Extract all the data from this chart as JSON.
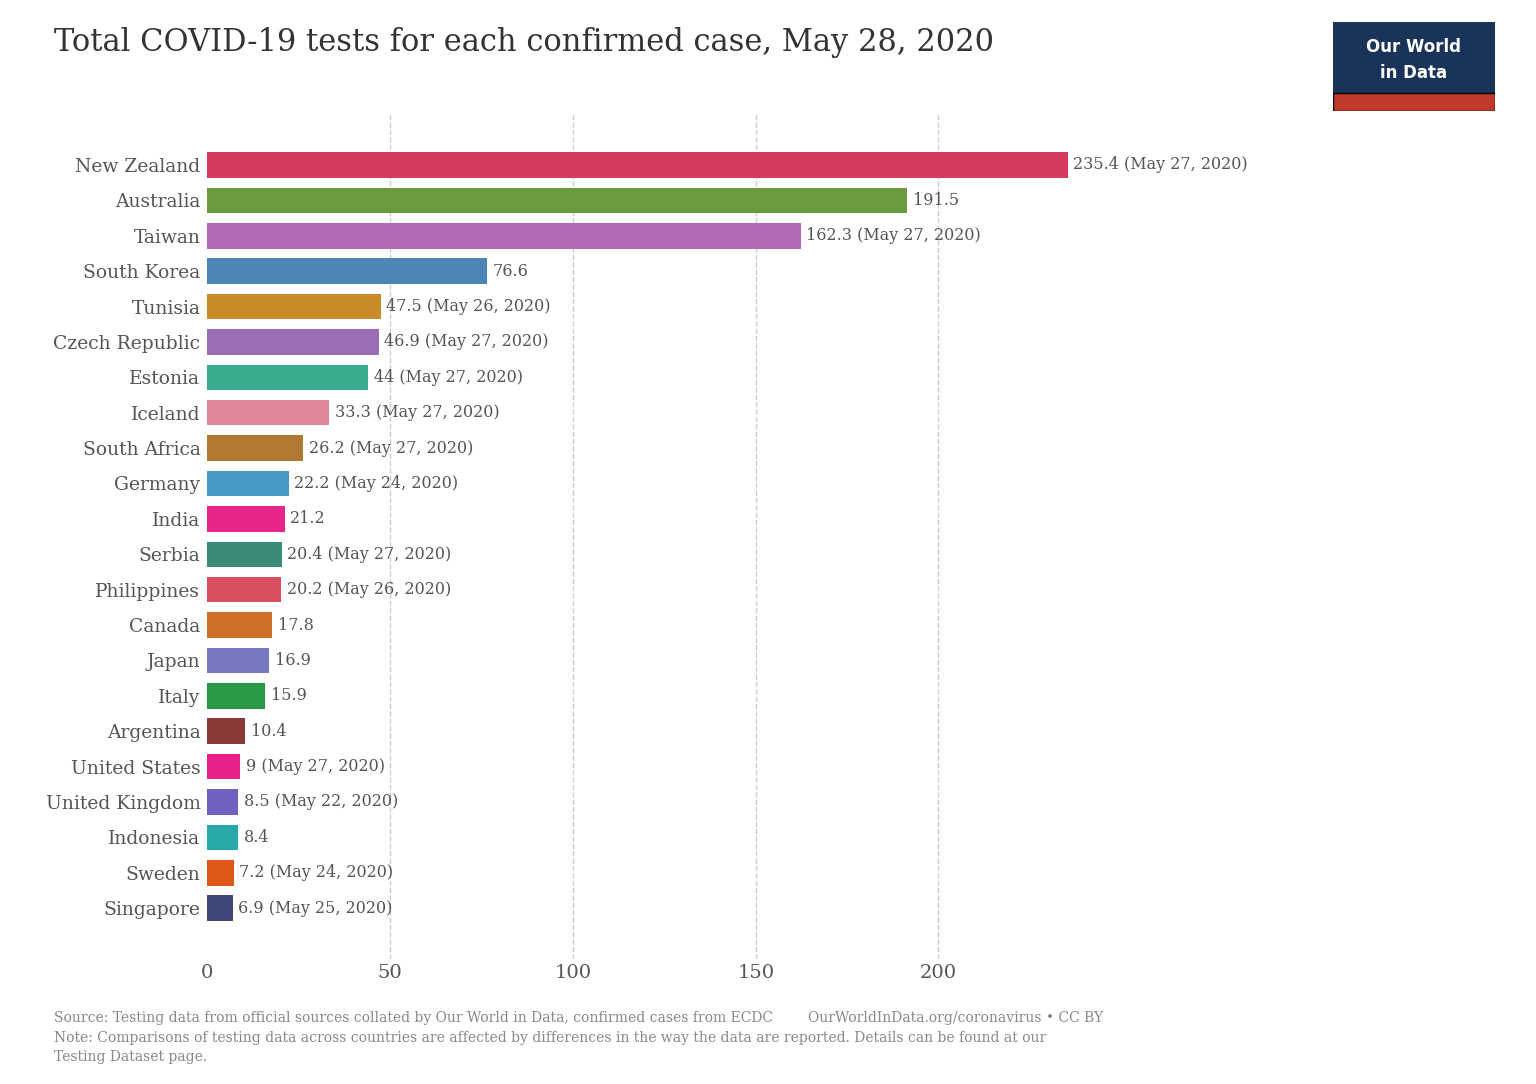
{
  "title": "Total COVID-19 tests for each confirmed case, May 28, 2020",
  "countries": [
    "New Zealand",
    "Australia",
    "Taiwan",
    "South Korea",
    "Tunisia",
    "Czech Republic",
    "Estonia",
    "Iceland",
    "South Africa",
    "Germany",
    "India",
    "Serbia",
    "Philippines",
    "Canada",
    "Japan",
    "Italy",
    "Argentina",
    "United States",
    "United Kingdom",
    "Indonesia",
    "Sweden",
    "Singapore"
  ],
  "values": [
    235.4,
    191.5,
    162.3,
    76.6,
    47.5,
    46.9,
    44.0,
    33.3,
    26.2,
    22.2,
    21.2,
    20.4,
    20.2,
    17.8,
    16.9,
    15.9,
    10.4,
    9.0,
    8.5,
    8.4,
    7.2,
    6.9
  ],
  "labels": [
    "235.4 (May 27, 2020)",
    "191.5",
    "162.3 (May 27, 2020)",
    "76.6",
    "47.5 (May 26, 2020)",
    "46.9 (May 27, 2020)",
    "44 (May 27, 2020)",
    "33.3 (May 27, 2020)",
    "26.2 (May 27, 2020)",
    "22.2 (May 24, 2020)",
    "21.2",
    "20.4 (May 27, 2020)",
    "20.2 (May 26, 2020)",
    "17.8",
    "16.9",
    "15.9",
    "10.4",
    "9 (May 27, 2020)",
    "8.5 (May 22, 2020)",
    "8.4",
    "7.2 (May 24, 2020)",
    "6.9 (May 25, 2020)"
  ],
  "colors": [
    "#d63b5e",
    "#6b9a3c",
    "#b06ab5",
    "#4e85b8",
    "#c98a28",
    "#9a6db5",
    "#38aa8e",
    "#e08898",
    "#b07830",
    "#4898c8",
    "#e8258a",
    "#3a8a7a",
    "#d85060",
    "#d07028",
    "#7878c0",
    "#2a9845",
    "#8a3838",
    "#e8208a",
    "#7060c0",
    "#28a8a8",
    "#e05818",
    "#404878"
  ],
  "xlim": [
    0,
    250
  ],
  "xticks": [
    0,
    50,
    100,
    150,
    200
  ],
  "source_line1": "Source: Testing data from official sources collated by Our World in Data, confirmed cases from ECDC        OurWorldInData.org/coronavirus • CC BY",
  "source_line2": "Note: Comparisons of testing data across countries are affected by differences in the way the data are reported. Details can be found at our",
  "source_line3": "Testing Dataset page.",
  "bg_color": "#ffffff",
  "text_color": "#555555",
  "grid_color": "#cccccc",
  "bar_height": 0.72,
  "owid_box_color": "#1a3358",
  "owid_red": "#c0392b"
}
